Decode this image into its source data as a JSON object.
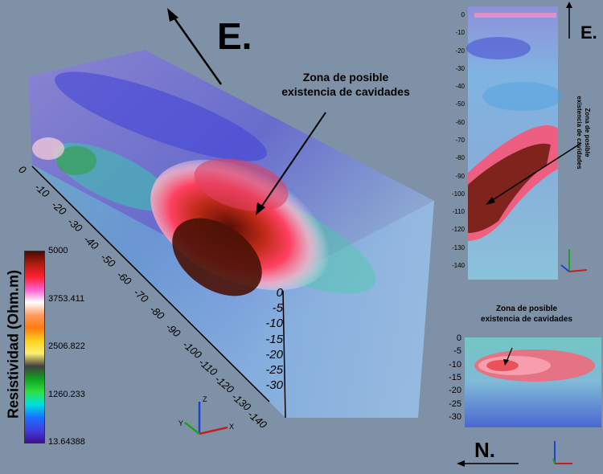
{
  "main_view": {
    "direction_label": "E.",
    "annotation": [
      "Zona de posible",
      "existencia de cavidades"
    ],
    "depth_ticks": [
      "0",
      "-10",
      "-20",
      "-30",
      "-40",
      "-50",
      "-60",
      "-70",
      "-80",
      "-90",
      "-100",
      "-110",
      "-120",
      "-130",
      "-140"
    ],
    "vertical_ticks": [
      "0",
      "-5",
      "-10",
      "-15",
      "-20",
      "-25",
      "-30"
    ],
    "axes": [
      "Z",
      "X",
      "Y"
    ]
  },
  "colorbar": {
    "title": "Resistividad (Ohm.m)",
    "ticks": [
      "5000",
      "3753.411",
      "2506.822",
      "1260.233",
      "13.64388"
    ],
    "colors": [
      "#4b0a05",
      "#b01c10",
      "#ff2030",
      "#ff60d0",
      "#ffffff",
      "#ff9a60",
      "#ff7a10",
      "#ffd020",
      "#fff070",
      "#404040",
      "#10a020",
      "#30e040",
      "#00e0e0",
      "#1870ff",
      "#4040e0",
      "#401090"
    ]
  },
  "side_view": {
    "direction_label": "E.",
    "annotation": [
      "Zona de posible",
      "existencia de cavidades"
    ],
    "ticks": [
      "0",
      "-10",
      "-20",
      "-30",
      "-40",
      "-50",
      "-60",
      "-70",
      "-80",
      "-90",
      "-100",
      "-110",
      "-120",
      "-130",
      "-140"
    ]
  },
  "section_view": {
    "direction_label": "N.",
    "annotation": [
      "Zona de posible",
      "existencia de cavidades"
    ],
    "ticks": [
      "0",
      "-5",
      "-10",
      "-15",
      "-20",
      "-25",
      "-30"
    ]
  }
}
